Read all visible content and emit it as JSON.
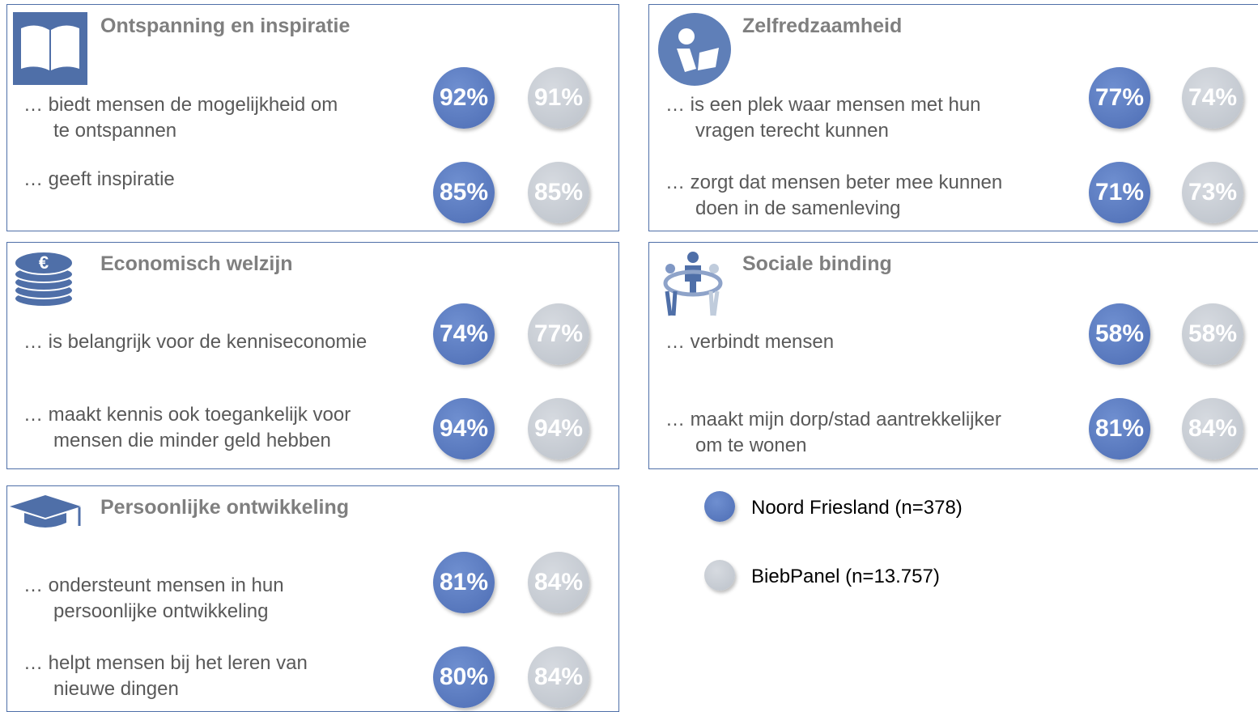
{
  "panels": [
    {
      "title": "Ontspanning en inspiratie",
      "items": [
        {
          "lines": [
            "… biedt mensen de mogelijkheid om",
            "te ontspannen"
          ],
          "a": "92%",
          "b": "91%"
        },
        {
          "lines": [
            "… geeft inspiratie"
          ],
          "a": "85%",
          "b": "85%"
        }
      ]
    },
    {
      "title": "Zelfredzaamheid",
      "items": [
        {
          "lines": [
            "… is een plek waar mensen met hun",
            "vragen terecht kunnen"
          ],
          "a": "77%",
          "b": "74%"
        },
        {
          "lines": [
            "… zorgt dat mensen beter mee kunnen",
            "doen in de samenleving"
          ],
          "a": "71%",
          "b": "73%"
        }
      ]
    },
    {
      "title": "Economisch welzijn",
      "items": [
        {
          "lines": [
            "… is belangrijk voor de kenniseconomie"
          ],
          "a": "74%",
          "b": "77%"
        },
        {
          "lines": [
            "… maakt kennis ook toegankelijk voor",
            "mensen die minder geld hebben"
          ],
          "a": "94%",
          "b": "94%"
        }
      ]
    },
    {
      "title": "Sociale binding",
      "items": [
        {
          "lines": [
            "… verbindt mensen"
          ],
          "a": "58%",
          "b": "58%"
        },
        {
          "lines": [
            "… maakt mijn dorp/stad aantrekkelijker",
            "om te wonen"
          ],
          "a": "81%",
          "b": "84%"
        }
      ]
    },
    {
      "title": "Persoonlijke ontwikkeling",
      "items": [
        {
          "lines": [
            "… ondersteunt mensen in hun",
            "persoonlijke ontwikkeling"
          ],
          "a": "81%",
          "b": "84%"
        },
        {
          "lines": [
            "… helpt mensen bij het leren van",
            "nieuwe dingen"
          ],
          "a": "80%",
          "b": "84%"
        }
      ]
    }
  ],
  "legend": [
    {
      "name": "Noord Friesland (n=378)"
    },
    {
      "name": "BiebPanel (n=13.757)"
    }
  ]
}
